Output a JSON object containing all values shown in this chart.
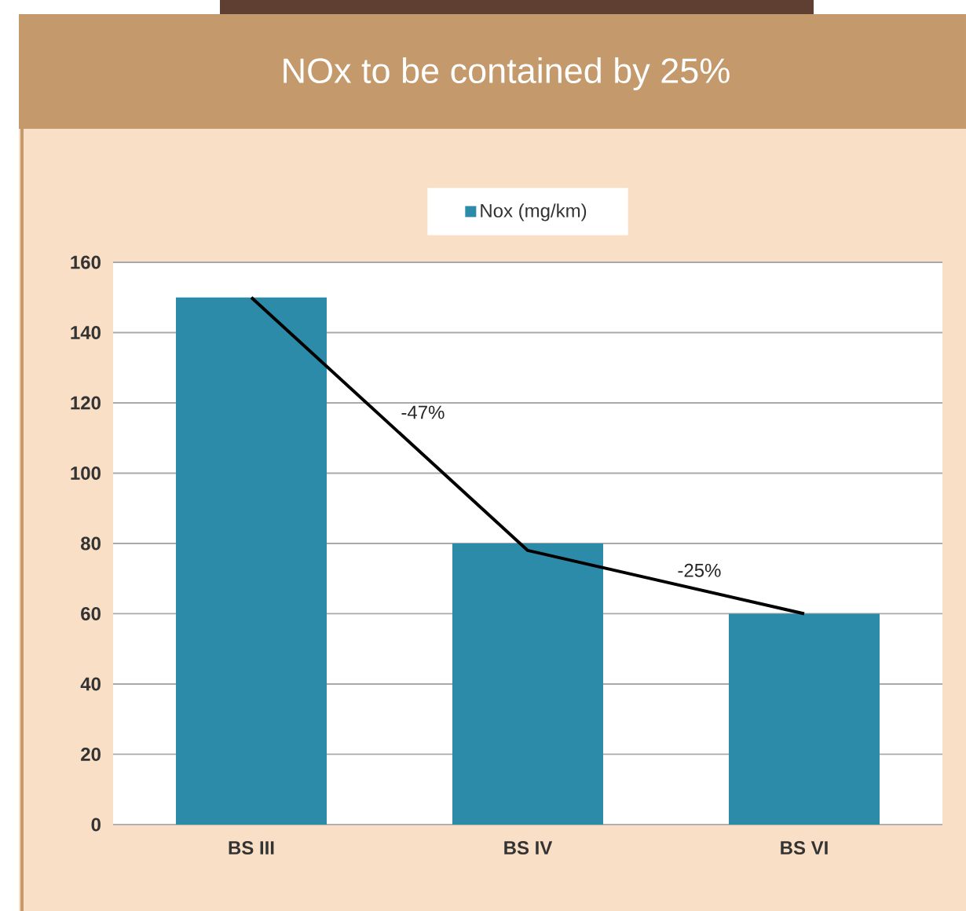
{
  "chart_data": {
    "type": "bar",
    "title": "NOx to be contained by 25%",
    "categories": [
      "BS III",
      "BS IV",
      "BS VI"
    ],
    "series": [
      {
        "name": "Nox (mg/km)",
        "color": "#2b8ba8",
        "values": [
          150,
          80,
          60
        ]
      },
      {
        "type": "line",
        "color": "#000000",
        "values": [
          150,
          78,
          60
        ]
      }
    ],
    "ylim": [
      0,
      160
    ],
    "yticks": [
      0,
      20,
      40,
      60,
      80,
      100,
      120,
      140,
      160
    ],
    "grid": "y",
    "legend": "top",
    "annotations": [
      "-47%",
      "-25%"
    ]
  }
}
